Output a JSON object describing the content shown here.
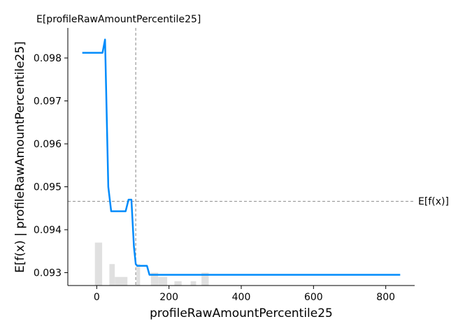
{
  "chart_data": {
    "type": "line",
    "xlabel": "profileRawAmountPercentile25",
    "ylabel": "E[f(x) | profileRawAmountPercentile25]",
    "xlim": [
      -80,
      880
    ],
    "ylim": [
      0.0927,
      0.0987
    ],
    "x_ticks": [
      0,
      200,
      400,
      600,
      800
    ],
    "y_ticks": [
      0.093,
      0.094,
      0.095,
      0.096,
      0.097,
      0.098
    ],
    "y_tick_labels": [
      "0.093",
      "0.094",
      "0.095",
      "0.096",
      "0.097",
      "0.098"
    ],
    "grid": false,
    "line_color": "#008bfb",
    "series": [
      {
        "x": [
          -40,
          0,
          16,
          23,
          32,
          40,
          55,
          70,
          80,
          88,
          96,
          103,
          108,
          112,
          125,
          139,
          146,
          160,
          200,
          300,
          400,
          500,
          600,
          700,
          800,
          840
        ],
        "y": [
          0.09812,
          0.09812,
          0.09812,
          0.09843,
          0.095,
          0.09443,
          0.09443,
          0.09443,
          0.09443,
          0.0947,
          0.0947,
          0.0936,
          0.0932,
          0.09316,
          0.09316,
          0.09316,
          0.09295,
          0.09295,
          0.09295,
          0.09295,
          0.09295,
          0.09295,
          0.09295,
          0.09295,
          0.09295,
          0.09295
        ]
      }
    ],
    "histogram": {
      "color": "#e0e0e0",
      "bin_edges": [
        -5,
        15,
        35,
        50,
        70,
        85,
        110,
        120,
        135,
        150,
        170,
        195,
        215,
        235,
        260,
        275,
        290,
        310,
        320
      ],
      "heights": [
        0.0937,
        0.0927,
        0.0932,
        0.0929,
        0.0929,
        0.0927,
        0.0932,
        0.0922,
        0.0927,
        0.093,
        0.0929,
        0.0927,
        0.0928,
        0.0926,
        0.0928,
        0.0922,
        0.093,
        0.0927
      ]
    },
    "expected_x": {
      "value": 108
    },
    "expected_fx": {
      "label": "E[f(x)]",
      "value": 0.09466
    },
    "top_annotation": "E[profileRawAmountPercentile25]"
  }
}
